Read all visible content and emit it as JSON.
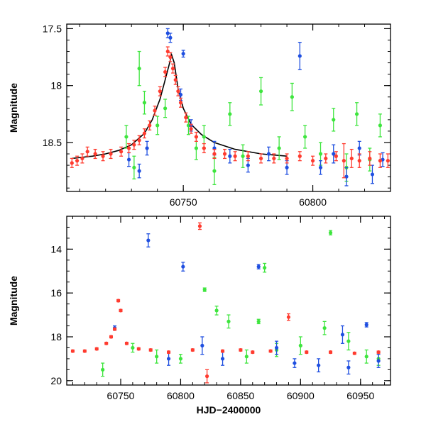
{
  "colors": {
    "green": "#3ee53e",
    "blue": "#1f4fe0",
    "red": "#ff3b2f",
    "model": "#000000"
  },
  "chart_data": [
    {
      "id": "top",
      "type": "scatter",
      "title": "",
      "xlabel": "",
      "ylabel": "Magnitude",
      "xlim": [
        60705,
        60830
      ],
      "ylim": [
        18.93,
        17.46
      ],
      "y_inverted": true,
      "xticks": [
        60750,
        60800
      ],
      "xtick_labels": [
        "60750",
        "60800"
      ],
      "yticks": [
        17.5,
        18,
        18.5
      ],
      "ytick_labels": [
        "17.5",
        "18",
        "18.5"
      ],
      "model_curve": {
        "name": "model fit",
        "x": [
          60707,
          60715,
          60720,
          60725,
          60730,
          60735,
          60738,
          60741,
          60743,
          60744.5,
          60745.5,
          60746.5,
          60748,
          60750,
          60753,
          60757,
          60762,
          60770,
          60780,
          60790
        ],
        "y": [
          18.64,
          18.62,
          18.6,
          18.57,
          18.52,
          18.42,
          18.3,
          18.12,
          17.95,
          17.82,
          17.73,
          17.8,
          18.03,
          18.2,
          18.34,
          18.43,
          18.5,
          18.56,
          18.6,
          18.62
        ]
      },
      "series": [
        {
          "name": "green",
          "x": [
            60728,
            60731,
            60733,
            60735,
            60740,
            60743,
            60752,
            60755,
            60758,
            60762,
            60768,
            60773,
            60780,
            60787,
            60792,
            60797,
            60803,
            60808,
            60813,
            60817,
            60822,
            60826
          ],
          "y": [
            18.45,
            18.72,
            17.85,
            18.15,
            18.35,
            18.2,
            18.35,
            18.55,
            18.45,
            18.75,
            18.25,
            18.62,
            18.05,
            18.55,
            18.1,
            18.45,
            18.6,
            18.3,
            18.72,
            18.25,
            18.65,
            18.35
          ],
          "err": [
            0.1,
            0.1,
            0.15,
            0.1,
            0.08,
            0.08,
            0.08,
            0.1,
            0.1,
            0.12,
            0.1,
            0.1,
            0.12,
            0.1,
            0.12,
            0.1,
            0.1,
            0.1,
            0.12,
            0.1,
            0.1,
            0.1
          ]
        },
        {
          "name": "blue",
          "x": [
            60729,
            60733,
            60736,
            60744,
            60745,
            60749,
            60750,
            60753,
            60762,
            60768,
            60775,
            60783,
            60790,
            60795,
            60803,
            60808,
            60813,
            60818,
            60823,
            60827
          ],
          "y": [
            18.65,
            18.75,
            18.55,
            17.54,
            17.58,
            18.08,
            17.72,
            18.35,
            18.55,
            18.62,
            18.7,
            18.6,
            18.72,
            17.74,
            18.72,
            18.6,
            18.8,
            18.55,
            18.78,
            18.65
          ],
          "err": [
            0.06,
            0.06,
            0.06,
            0.04,
            0.04,
            0.05,
            0.03,
            0.05,
            0.06,
            0.06,
            0.06,
            0.06,
            0.06,
            0.12,
            0.06,
            0.08,
            0.08,
            0.06,
            0.08,
            0.06
          ]
        },
        {
          "name": "red",
          "x": [
            60707,
            60709,
            60711,
            60713,
            60716,
            60719,
            60722,
            60726,
            60729,
            60731,
            60733,
            60735,
            60737,
            60739,
            60741,
            60743,
            60744,
            60745,
            60746,
            60747,
            60748,
            60749,
            60751,
            60753,
            60755,
            60758,
            60762,
            60766,
            60770,
            60775,
            60780,
            60785,
            60790,
            60795,
            60800,
            60805,
            60809,
            60812,
            60815,
            60818,
            60822,
            60826,
            60829
          ],
          "y": [
            18.68,
            18.66,
            18.64,
            18.58,
            18.6,
            18.62,
            18.6,
            18.58,
            18.55,
            18.52,
            18.48,
            18.42,
            18.35,
            18.22,
            18.05,
            17.88,
            17.7,
            17.75,
            17.85,
            17.95,
            18.05,
            18.15,
            18.28,
            18.38,
            18.45,
            18.55,
            18.6,
            18.6,
            18.62,
            18.62,
            18.64,
            18.64,
            18.64,
            18.62,
            18.66,
            18.64,
            18.62,
            18.66,
            18.64,
            18.66,
            18.64,
            18.66,
            18.66
          ],
          "err": [
            0.04,
            0.04,
            0.04,
            0.04,
            0.04,
            0.04,
            0.04,
            0.04,
            0.04,
            0.04,
            0.04,
            0.04,
            0.04,
            0.04,
            0.04,
            0.04,
            0.04,
            0.04,
            0.04,
            0.04,
            0.04,
            0.04,
            0.04,
            0.04,
            0.04,
            0.04,
            0.04,
            0.04,
            0.04,
            0.04,
            0.04,
            0.04,
            0.04,
            0.04,
            0.04,
            0.04,
            0.04,
            0.15,
            0.08,
            0.06,
            0.06,
            0.06,
            0.06
          ]
        }
      ]
    },
    {
      "id": "bottom",
      "type": "scatter",
      "title": "",
      "xlabel": "HJD−2400000",
      "ylabel": "Magnitude",
      "xlim": [
        60705,
        60975
      ],
      "ylim": [
        20.2,
        12.5
      ],
      "y_inverted": true,
      "xticks": [
        60750,
        60800,
        60850,
        60900,
        60950
      ],
      "xtick_labels": [
        "60750",
        "60800",
        "60850",
        "60900",
        "60950"
      ],
      "yticks": [
        14,
        16,
        18,
        20
      ],
      "ytick_labels": [
        "14",
        "16",
        "18",
        "20"
      ],
      "series": [
        {
          "name": "green",
          "x": [
            60735,
            60760,
            60780,
            60800,
            60820,
            60830,
            60840,
            60855,
            60865,
            60870,
            60880,
            60900,
            60920,
            60925,
            60940,
            60955,
            60965
          ],
          "y": [
            19.5,
            18.5,
            18.9,
            19.0,
            15.85,
            16.8,
            17.3,
            18.9,
            17.3,
            14.85,
            18.6,
            18.4,
            17.6,
            13.25,
            18.2,
            18.9,
            19.0
          ],
          "err": [
            0.3,
            0.2,
            0.3,
            0.2,
            0.08,
            0.2,
            0.3,
            0.3,
            0.1,
            0.2,
            0.3,
            0.4,
            0.3,
            0.1,
            0.4,
            0.3,
            0.3
          ]
        },
        {
          "name": "blue",
          "x": [
            60745,
            60773,
            60790,
            60802,
            60818,
            60835,
            60865,
            60880,
            60895,
            60915,
            60935,
            60940,
            60955,
            60965
          ],
          "y": [
            17.6,
            13.6,
            19.0,
            14.8,
            18.4,
            19.0,
            14.8,
            18.5,
            19.2,
            19.3,
            17.9,
            19.4,
            17.45,
            19.1
          ],
          "err": [
            0.1,
            0.3,
            0.3,
            0.2,
            0.4,
            0.3,
            0.1,
            0.3,
            0.2,
            0.3,
            0.4,
            0.3,
            0.1,
            0.3
          ]
        },
        {
          "name": "red",
          "x": [
            60710,
            60720,
            60730,
            60738,
            60742,
            60745,
            60748,
            60750,
            60755,
            60765,
            60775,
            60790,
            60810,
            60816,
            60822,
            60835,
            60850,
            60860,
            60875,
            60890,
            60905,
            60925,
            60945,
            60965
          ],
          "y": [
            18.65,
            18.65,
            18.55,
            18.3,
            18.0,
            17.65,
            16.35,
            16.8,
            18.3,
            18.55,
            18.6,
            18.7,
            18.6,
            12.95,
            19.8,
            18.65,
            18.6,
            18.7,
            18.65,
            17.1,
            18.7,
            18.7,
            18.75,
            18.7
          ],
          "err": [
            0.05,
            0.05,
            0.05,
            0.05,
            0.05,
            0.05,
            0.05,
            0.05,
            0.05,
            0.05,
            0.05,
            0.05,
            0.05,
            0.15,
            0.3,
            0.05,
            0.05,
            0.05,
            0.05,
            0.15,
            0.05,
            0.05,
            0.05,
            0.05
          ]
        }
      ]
    }
  ]
}
